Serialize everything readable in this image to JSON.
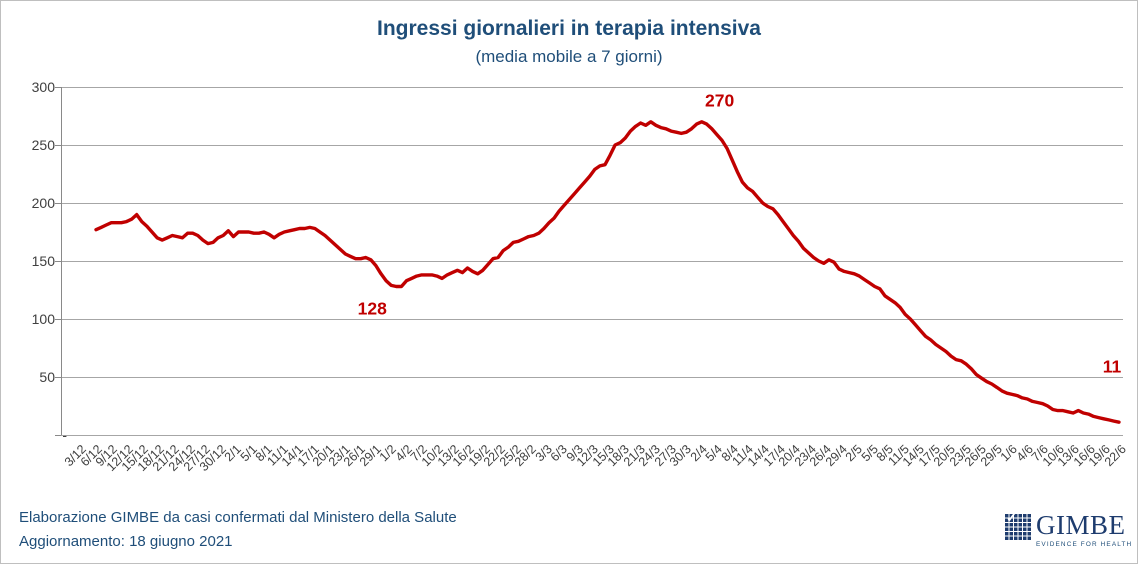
{
  "chart_data": {
    "type": "line",
    "title": "Ingressi giornalieri in terapia intensiva",
    "subtitle": "(media mobile a 7 giorni)",
    "line_color": "#C00000",
    "grid": "horizontal",
    "legend": "none",
    "ylim": [
      0,
      300
    ],
    "ytick_labels": [
      "300",
      "250",
      "200",
      "150",
      "100",
      "50",
      "-"
    ],
    "x_tick_labels": [
      "3/12",
      "6/12",
      "9/12",
      "12/12",
      "15/12",
      "18/12",
      "21/12",
      "24/12",
      "27/12",
      "30/12",
      "2/1",
      "5/1",
      "8/1",
      "11/1",
      "14/1",
      "17/1",
      "20/1",
      "23/1",
      "26/1",
      "29/1",
      "1/2",
      "4/2",
      "7/2",
      "10/2",
      "13/2",
      "16/2",
      "19/2",
      "22/2",
      "25/2",
      "28/2",
      "3/3",
      "6/3",
      "9/3",
      "12/3",
      "15/3",
      "18/3",
      "21/3",
      "24/3",
      "27/3",
      "30/3",
      "2/4",
      "5/4",
      "8/4",
      "11/4",
      "14/4",
      "17/4",
      "20/4",
      "23/4",
      "26/4",
      "29/4",
      "2/5",
      "5/5",
      "8/5",
      "11/5",
      "14/5",
      "17/5",
      "20/5",
      "23/5",
      "26/5",
      "29/5",
      "1/6",
      "4/6",
      "7/6",
      "10/6",
      "13/6",
      "16/6",
      "19/6",
      "22/6"
    ],
    "values": [
      177,
      179,
      181,
      183,
      183,
      183,
      184,
      186,
      190,
      184,
      180,
      175,
      170,
      168,
      170,
      172,
      171,
      170,
      174,
      174,
      172,
      168,
      165,
      166,
      170,
      172,
      176,
      171,
      175,
      175,
      175,
      174,
      174,
      175,
      173,
      170,
      173,
      175,
      176,
      177,
      178,
      178,
      179,
      178,
      175,
      172,
      168,
      164,
      160,
      156,
      154,
      152,
      152,
      153,
      151,
      146,
      139,
      133,
      129,
      128,
      128,
      133,
      135,
      137,
      138,
      138,
      138,
      137,
      135,
      138,
      140,
      142,
      140,
      144,
      141,
      139,
      142,
      147,
      152,
      153,
      159,
      162,
      166,
      167,
      169,
      171,
      172,
      174,
      178,
      183,
      187,
      193,
      198,
      203,
      208,
      213,
      218,
      223,
      229,
      232,
      233,
      241,
      250,
      252,
      256,
      262,
      266,
      269,
      267,
      270,
      267,
      265,
      264,
      262,
      261,
      260,
      261,
      264,
      268,
      270,
      268,
      264,
      259,
      254,
      247,
      237,
      227,
      218,
      213,
      210,
      205,
      200,
      197,
      195,
      190,
      184,
      178,
      172,
      167,
      161,
      157,
      153,
      150,
      148,
      151,
      149,
      143,
      141,
      140,
      139,
      137,
      134,
      131,
      128,
      126,
      120,
      117,
      114,
      110,
      104,
      100,
      95,
      90,
      85,
      82,
      78,
      75,
      72,
      68,
      65,
      64,
      61,
      57,
      52,
      49,
      46,
      44,
      41,
      38,
      36,
      35,
      34,
      32,
      31,
      29,
      28,
      27,
      25,
      22,
      21,
      21,
      20,
      19,
      21,
      19,
      18,
      16,
      15,
      14,
      13,
      12,
      11
    ],
    "annotations": [
      {
        "text": "270",
        "index": 119
      },
      {
        "text": "128",
        "index": 59
      },
      {
        "text": "11",
        "index": 201
      }
    ]
  },
  "footer": {
    "line1": "Elaborazione GIMBE da casi confermati dal Ministero della Salute",
    "line2": "Aggiornamento:  18 giugno 2021"
  },
  "logo": {
    "word": "GIMBE",
    "tagline": "EVIDENCE FOR HEALTH"
  },
  "colors": {
    "title_blue": "#1F4E79",
    "line_red": "#C00000",
    "gridline_gray": "#A6A6A6"
  }
}
